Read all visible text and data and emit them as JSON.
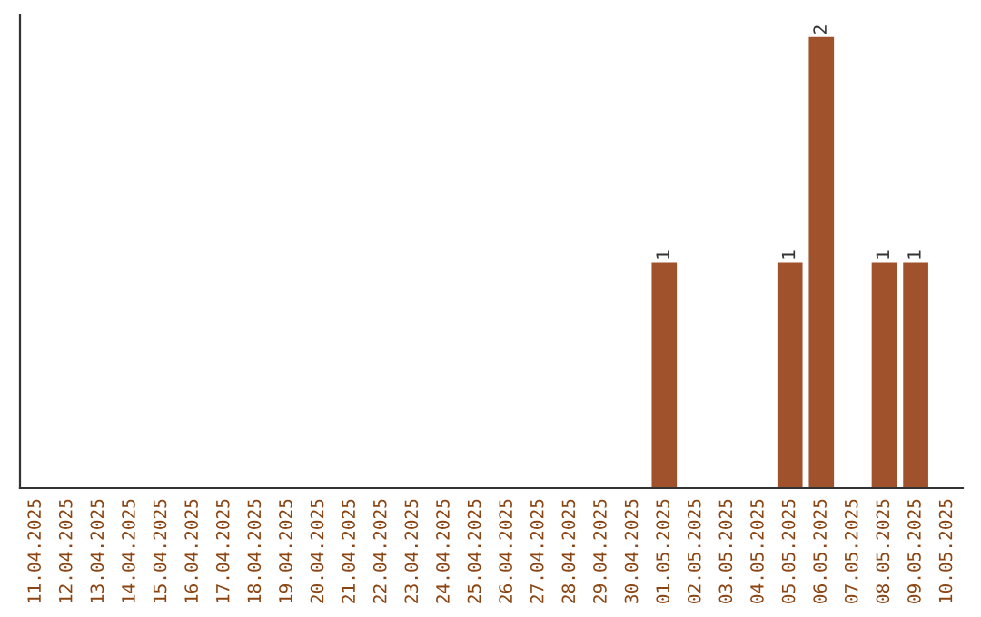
{
  "chart_data": {
    "type": "bar",
    "categories": [
      "11.04.2025",
      "12.04.2025",
      "13.04.2025",
      "14.04.2025",
      "15.04.2025",
      "16.04.2025",
      "17.04.2025",
      "18.04.2025",
      "19.04.2025",
      "20.04.2025",
      "21.04.2025",
      "22.04.2025",
      "23.04.2025",
      "24.04.2025",
      "25.04.2025",
      "26.04.2025",
      "27.04.2025",
      "28.04.2025",
      "29.04.2025",
      "30.04.2025",
      "01.05.2025",
      "02.05.2025",
      "03.05.2025",
      "04.05.2025",
      "05.05.2025",
      "06.05.2025",
      "07.05.2025",
      "08.05.2025",
      "09.05.2025",
      "10.05.2025"
    ],
    "values": [
      null,
      null,
      null,
      null,
      null,
      null,
      null,
      null,
      null,
      null,
      null,
      null,
      null,
      null,
      null,
      null,
      null,
      null,
      null,
      null,
      1,
      null,
      null,
      null,
      1,
      2,
      null,
      1,
      1,
      null
    ],
    "data_labels": true,
    "color": "#a0522d",
    "ylim": [
      0,
      2.1
    ],
    "tick_labels": "x",
    "grid": false,
    "legend": false
  }
}
